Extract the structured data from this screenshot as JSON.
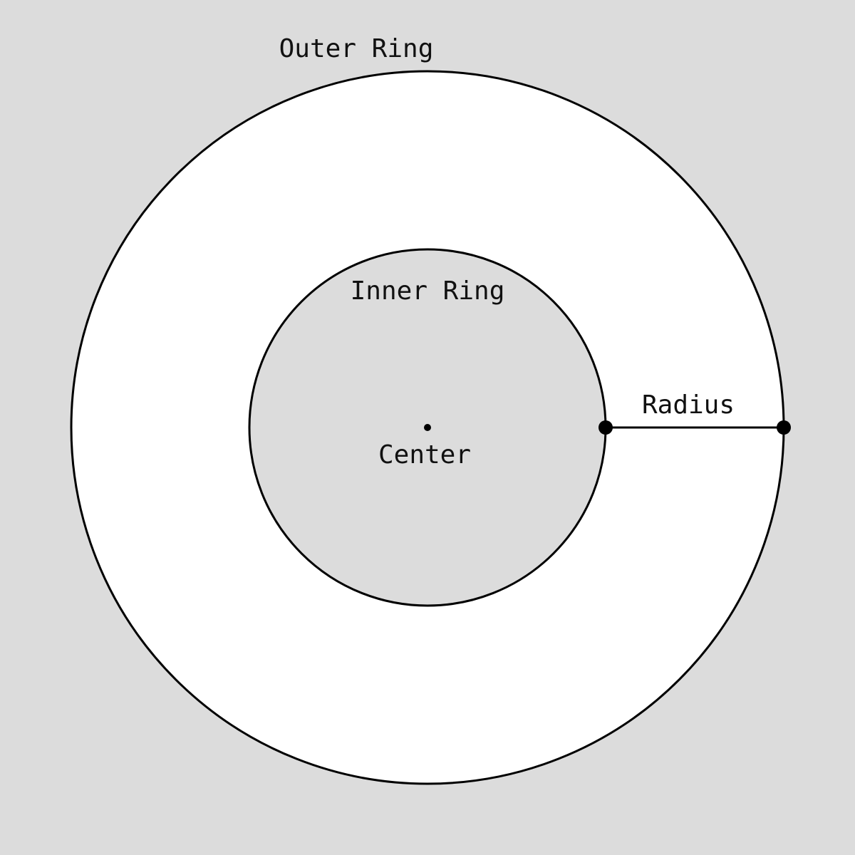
{
  "labels": {
    "outer_ring": "Outer Ring",
    "inner_ring": "Inner Ring",
    "center": "Center",
    "radius": "Radius"
  },
  "colors": {
    "background": "#dcdcdc",
    "outer_fill": "#ffffff",
    "inner_fill": "#dcdcdc",
    "stroke": "#000000"
  }
}
